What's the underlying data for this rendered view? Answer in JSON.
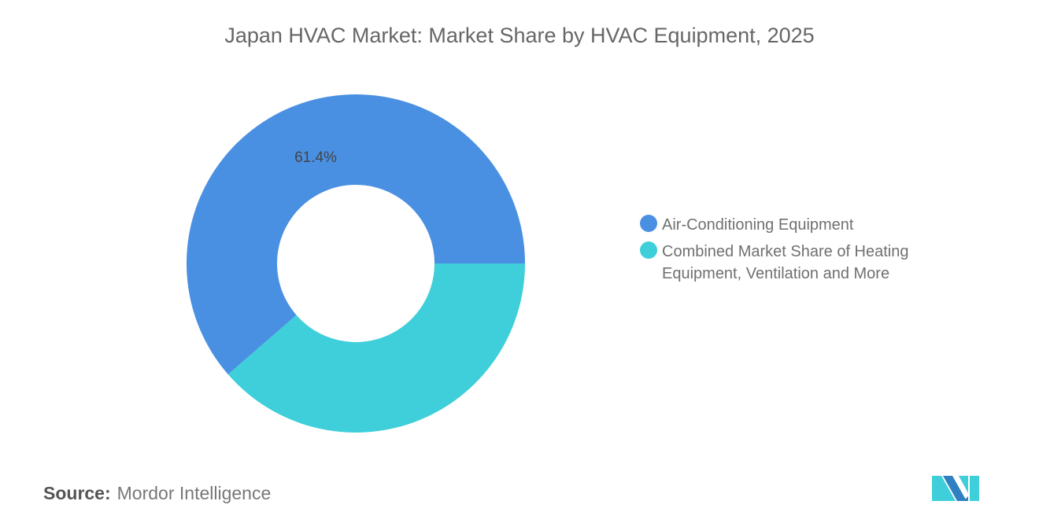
{
  "chart_data": {
    "type": "pie",
    "subtype": "donut",
    "title": "Japan HVAC Market: Market Share by HVAC Equipment, 2025",
    "categories": [
      "Air-Conditioning Equipment",
      "Combined Market Share of Heating Equipment, Ventilation and More"
    ],
    "values": [
      61.4,
      38.6
    ],
    "unit": "%",
    "data_labels": [
      "61.4%",
      ""
    ],
    "colors": [
      "#4a90e2",
      "#3ecfda"
    ],
    "legend_position": "right"
  },
  "source": {
    "label": "Source:",
    "value": "Mordor Intelligence"
  },
  "logo": {
    "name": "mordor-intelligence-logo",
    "colors": [
      "#2f7fc1",
      "#3ecfda"
    ]
  }
}
